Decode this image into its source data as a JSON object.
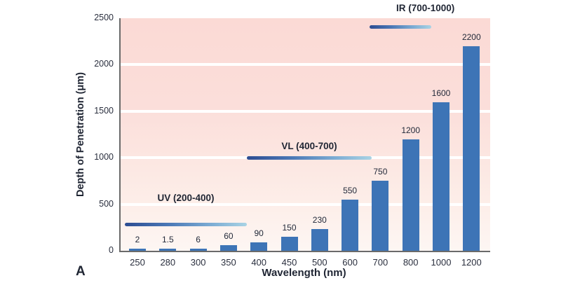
{
  "panel_label": "A",
  "chart_data": {
    "type": "bar",
    "categories": [
      "250",
      "280",
      "300",
      "350",
      "400",
      "450",
      "500",
      "600",
      "700",
      "800",
      "1000",
      "1200"
    ],
    "values": [
      2,
      1.5,
      6,
      60,
      90,
      150,
      230,
      550,
      750,
      1200,
      1600,
      2200
    ],
    "value_labels": [
      "2",
      "1.5",
      "6",
      "60",
      "90",
      "150",
      "230",
      "550",
      "750",
      "1200",
      "1600",
      "2200"
    ],
    "xlabel": "Wavelength (nm)",
    "ylabel": "Depth of Penetration (μm)",
    "ylim": [
      0,
      2500
    ],
    "ytick_labels": [
      "0",
      "500",
      "1000",
      "1500",
      "2000",
      "2500"
    ],
    "grid": "horizontal white lines every 500",
    "legend": "none",
    "annotations": [
      {
        "id": "uv",
        "label": "UV (200-400)"
      },
      {
        "id": "vl",
        "label": "VL (400-700)"
      },
      {
        "id": "ir",
        "label": "IR (700-1000)"
      }
    ],
    "colors": {
      "bar": "#3d74b6",
      "text": "#1f2533",
      "axis": "#6a6a6a",
      "plot_band_top": "#fbdad5",
      "plot_band_bottom": "#fdf6f3",
      "spectrum_gradient_start": "#2d4d92",
      "spectrum_gradient_end": "#a9d3e4"
    }
  }
}
